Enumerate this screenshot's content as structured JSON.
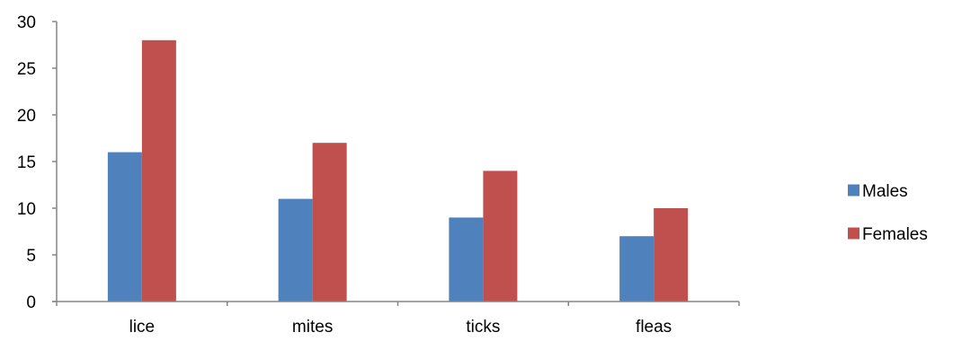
{
  "chart_data": {
    "type": "bar",
    "categories": [
      "lice",
      "mites",
      "ticks",
      "fleas"
    ],
    "series": [
      {
        "name": "Males",
        "values": [
          16,
          11,
          9,
          7
        ],
        "color": "#4F81BD"
      },
      {
        "name": "Females",
        "values": [
          28,
          17,
          14,
          10
        ],
        "color": "#C0504D"
      }
    ],
    "title": "",
    "xlabel": "",
    "ylabel": "",
    "ylim": [
      0,
      30
    ],
    "yticks": [
      0,
      5,
      10,
      15,
      20,
      25,
      30
    ],
    "grid": false,
    "legend": "right"
  }
}
